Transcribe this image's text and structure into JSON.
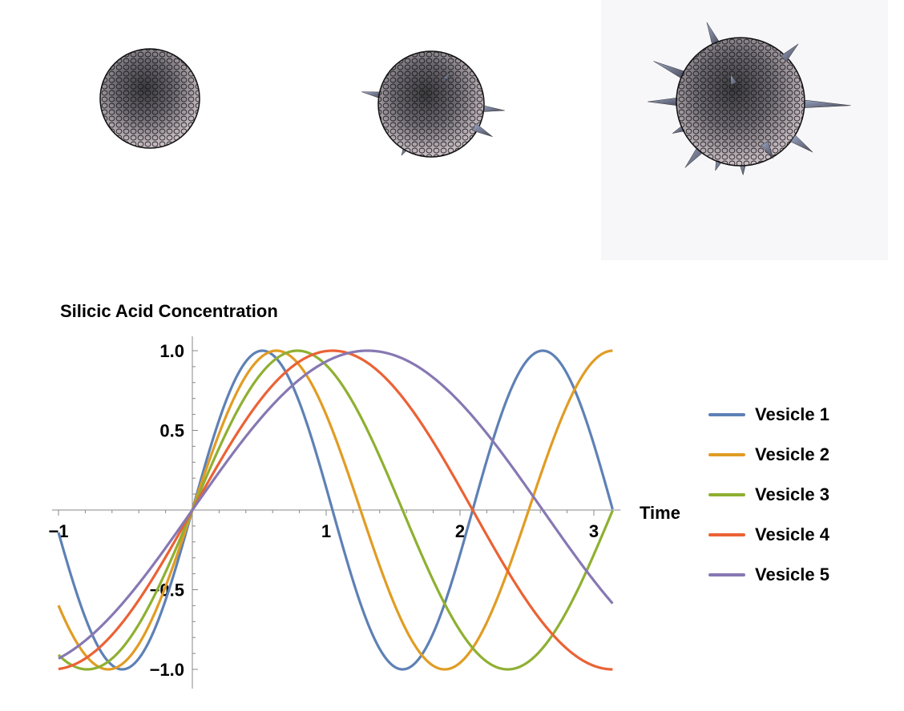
{
  "chart_data": {
    "type": "line",
    "title": "Silicic Acid Concentration",
    "xlabel": "Time",
    "ylabel": "",
    "xlim": [
      -1,
      3.14
    ],
    "ylim": [
      -1.05,
      1.05
    ],
    "x_ticks": [
      -1,
      1,
      2,
      3
    ],
    "x_tick_labels": [
      "-1",
      "1",
      "2",
      "3"
    ],
    "y_ticks": [
      -1.0,
      -0.5,
      0.5,
      1.0
    ],
    "y_tick_labels": [
      "-1.0",
      "-0.5",
      "0.5",
      "1.0"
    ],
    "grid": false,
    "legend_position": "right",
    "series": [
      {
        "name": "Vesicle 1",
        "color": "#5e81b5",
        "function": "sin(3x)"
      },
      {
        "name": "Vesicle 2",
        "color": "#e19c24",
        "function": "sin(2.5x)"
      },
      {
        "name": "Vesicle 3",
        "color": "#8fb032",
        "function": "sin(2x)"
      },
      {
        "name": "Vesicle 4",
        "color": "#eb6235",
        "function": "sin(1.5x)"
      },
      {
        "name": "Vesicle 5",
        "color": "#8778b3",
        "function": "sin(1.2x)"
      }
    ]
  },
  "illustrations": {
    "items": [
      {
        "name": "vesicle-sphere-smooth",
        "spikes": 0
      },
      {
        "name": "vesicle-sphere-few-spikes",
        "spikes": 6
      },
      {
        "name": "vesicle-sphere-many-spikes",
        "spikes": 14
      }
    ]
  }
}
